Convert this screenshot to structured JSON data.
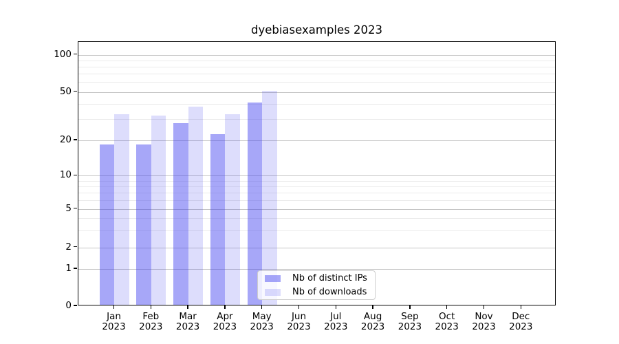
{
  "title": "dyebiasexamples 2023",
  "chart_data": {
    "type": "bar",
    "title": "dyebiasexamples 2023",
    "categories": [
      "Jan 2023",
      "Feb 2023",
      "Mar 2023",
      "Apr 2023",
      "May 2023",
      "Jun 2023",
      "Jul 2023",
      "Aug 2023",
      "Sep 2023",
      "Oct 2023",
      "Nov 2023",
      "Dec 2023"
    ],
    "x_tick_labels": [
      [
        "Jan",
        "2023"
      ],
      [
        "Feb",
        "2023"
      ],
      [
        "Mar",
        "2023"
      ],
      [
        "Apr",
        "2023"
      ],
      [
        "May",
        "2023"
      ],
      [
        "Jun",
        "2023"
      ],
      [
        "Jul",
        "2023"
      ],
      [
        "Aug",
        "2023"
      ],
      [
        "Sep",
        "2023"
      ],
      [
        "Oct",
        "2023"
      ],
      [
        "Nov",
        "2023"
      ],
      [
        "Dec",
        "2023"
      ]
    ],
    "series": [
      {
        "name": "Nb of distinct IPs",
        "color": "rgba(64,64,240,0.46)",
        "values": [
          18,
          18,
          27,
          22,
          40,
          null,
          null,
          null,
          null,
          null,
          null,
          null
        ]
      },
      {
        "name": "Nb of downloads",
        "color": "rgba(64,64,240,0.18)",
        "values": [
          32,
          31,
          37,
          32,
          50,
          null,
          null,
          null,
          null,
          null,
          null,
          null
        ]
      }
    ],
    "y_axis": {
      "scale": "symlog",
      "ticks": [
        0,
        1,
        2,
        5,
        10,
        20,
        50,
        100
      ],
      "minor_gridlines": [
        3,
        4,
        6,
        7,
        8,
        9,
        30,
        40,
        60,
        70,
        80,
        90
      ]
    },
    "ylim": [
      0,
      126
    ],
    "grid": "horizontal major and minor gridlines",
    "legend_position": "inside, lower middle"
  },
  "colors": {
    "distinct_ips": "rgba(64,64,240,0.46)",
    "downloads": "rgba(64,64,240,0.18)",
    "grid_major": "#c6c6c6",
    "grid_minor": "#eaeaea"
  }
}
